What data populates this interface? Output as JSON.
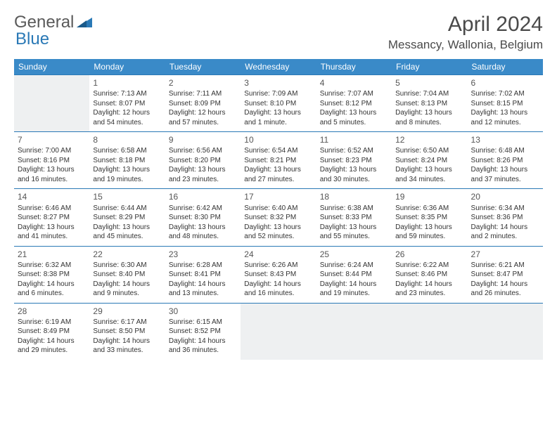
{
  "logo": {
    "general": "General",
    "blue": "Blue"
  },
  "header": {
    "month_title": "April 2024",
    "location": "Messancy, Wallonia, Belgium"
  },
  "colors": {
    "header_bg": "#3a8ac8",
    "header_text": "#ffffff",
    "cell_border": "#2a79b6",
    "empty_bg": "#eef0f1",
    "text": "#333333",
    "logo_gray": "#5a5a5a",
    "logo_blue": "#2a79b6"
  },
  "weekdays": [
    "Sunday",
    "Monday",
    "Tuesday",
    "Wednesday",
    "Thursday",
    "Friday",
    "Saturday"
  ],
  "weeks": [
    [
      {
        "empty": true
      },
      {
        "day": "1",
        "sunrise": "Sunrise: 7:13 AM",
        "sunset": "Sunset: 8:07 PM",
        "daylight1": "Daylight: 12 hours",
        "daylight2": "and 54 minutes."
      },
      {
        "day": "2",
        "sunrise": "Sunrise: 7:11 AM",
        "sunset": "Sunset: 8:09 PM",
        "daylight1": "Daylight: 12 hours",
        "daylight2": "and 57 minutes."
      },
      {
        "day": "3",
        "sunrise": "Sunrise: 7:09 AM",
        "sunset": "Sunset: 8:10 PM",
        "daylight1": "Daylight: 13 hours",
        "daylight2": "and 1 minute."
      },
      {
        "day": "4",
        "sunrise": "Sunrise: 7:07 AM",
        "sunset": "Sunset: 8:12 PM",
        "daylight1": "Daylight: 13 hours",
        "daylight2": "and 5 minutes."
      },
      {
        "day": "5",
        "sunrise": "Sunrise: 7:04 AM",
        "sunset": "Sunset: 8:13 PM",
        "daylight1": "Daylight: 13 hours",
        "daylight2": "and 8 minutes."
      },
      {
        "day": "6",
        "sunrise": "Sunrise: 7:02 AM",
        "sunset": "Sunset: 8:15 PM",
        "daylight1": "Daylight: 13 hours",
        "daylight2": "and 12 minutes."
      }
    ],
    [
      {
        "day": "7",
        "sunrise": "Sunrise: 7:00 AM",
        "sunset": "Sunset: 8:16 PM",
        "daylight1": "Daylight: 13 hours",
        "daylight2": "and 16 minutes."
      },
      {
        "day": "8",
        "sunrise": "Sunrise: 6:58 AM",
        "sunset": "Sunset: 8:18 PM",
        "daylight1": "Daylight: 13 hours",
        "daylight2": "and 19 minutes."
      },
      {
        "day": "9",
        "sunrise": "Sunrise: 6:56 AM",
        "sunset": "Sunset: 8:20 PM",
        "daylight1": "Daylight: 13 hours",
        "daylight2": "and 23 minutes."
      },
      {
        "day": "10",
        "sunrise": "Sunrise: 6:54 AM",
        "sunset": "Sunset: 8:21 PM",
        "daylight1": "Daylight: 13 hours",
        "daylight2": "and 27 minutes."
      },
      {
        "day": "11",
        "sunrise": "Sunrise: 6:52 AM",
        "sunset": "Sunset: 8:23 PM",
        "daylight1": "Daylight: 13 hours",
        "daylight2": "and 30 minutes."
      },
      {
        "day": "12",
        "sunrise": "Sunrise: 6:50 AM",
        "sunset": "Sunset: 8:24 PM",
        "daylight1": "Daylight: 13 hours",
        "daylight2": "and 34 minutes."
      },
      {
        "day": "13",
        "sunrise": "Sunrise: 6:48 AM",
        "sunset": "Sunset: 8:26 PM",
        "daylight1": "Daylight: 13 hours",
        "daylight2": "and 37 minutes."
      }
    ],
    [
      {
        "day": "14",
        "sunrise": "Sunrise: 6:46 AM",
        "sunset": "Sunset: 8:27 PM",
        "daylight1": "Daylight: 13 hours",
        "daylight2": "and 41 minutes."
      },
      {
        "day": "15",
        "sunrise": "Sunrise: 6:44 AM",
        "sunset": "Sunset: 8:29 PM",
        "daylight1": "Daylight: 13 hours",
        "daylight2": "and 45 minutes."
      },
      {
        "day": "16",
        "sunrise": "Sunrise: 6:42 AM",
        "sunset": "Sunset: 8:30 PM",
        "daylight1": "Daylight: 13 hours",
        "daylight2": "and 48 minutes."
      },
      {
        "day": "17",
        "sunrise": "Sunrise: 6:40 AM",
        "sunset": "Sunset: 8:32 PM",
        "daylight1": "Daylight: 13 hours",
        "daylight2": "and 52 minutes."
      },
      {
        "day": "18",
        "sunrise": "Sunrise: 6:38 AM",
        "sunset": "Sunset: 8:33 PM",
        "daylight1": "Daylight: 13 hours",
        "daylight2": "and 55 minutes."
      },
      {
        "day": "19",
        "sunrise": "Sunrise: 6:36 AM",
        "sunset": "Sunset: 8:35 PM",
        "daylight1": "Daylight: 13 hours",
        "daylight2": "and 59 minutes."
      },
      {
        "day": "20",
        "sunrise": "Sunrise: 6:34 AM",
        "sunset": "Sunset: 8:36 PM",
        "daylight1": "Daylight: 14 hours",
        "daylight2": "and 2 minutes."
      }
    ],
    [
      {
        "day": "21",
        "sunrise": "Sunrise: 6:32 AM",
        "sunset": "Sunset: 8:38 PM",
        "daylight1": "Daylight: 14 hours",
        "daylight2": "and 6 minutes."
      },
      {
        "day": "22",
        "sunrise": "Sunrise: 6:30 AM",
        "sunset": "Sunset: 8:40 PM",
        "daylight1": "Daylight: 14 hours",
        "daylight2": "and 9 minutes."
      },
      {
        "day": "23",
        "sunrise": "Sunrise: 6:28 AM",
        "sunset": "Sunset: 8:41 PM",
        "daylight1": "Daylight: 14 hours",
        "daylight2": "and 13 minutes."
      },
      {
        "day": "24",
        "sunrise": "Sunrise: 6:26 AM",
        "sunset": "Sunset: 8:43 PM",
        "daylight1": "Daylight: 14 hours",
        "daylight2": "and 16 minutes."
      },
      {
        "day": "25",
        "sunrise": "Sunrise: 6:24 AM",
        "sunset": "Sunset: 8:44 PM",
        "daylight1": "Daylight: 14 hours",
        "daylight2": "and 19 minutes."
      },
      {
        "day": "26",
        "sunrise": "Sunrise: 6:22 AM",
        "sunset": "Sunset: 8:46 PM",
        "daylight1": "Daylight: 14 hours",
        "daylight2": "and 23 minutes."
      },
      {
        "day": "27",
        "sunrise": "Sunrise: 6:21 AM",
        "sunset": "Sunset: 8:47 PM",
        "daylight1": "Daylight: 14 hours",
        "daylight2": "and 26 minutes."
      }
    ],
    [
      {
        "day": "28",
        "sunrise": "Sunrise: 6:19 AM",
        "sunset": "Sunset: 8:49 PM",
        "daylight1": "Daylight: 14 hours",
        "daylight2": "and 29 minutes."
      },
      {
        "day": "29",
        "sunrise": "Sunrise: 6:17 AM",
        "sunset": "Sunset: 8:50 PM",
        "daylight1": "Daylight: 14 hours",
        "daylight2": "and 33 minutes."
      },
      {
        "day": "30",
        "sunrise": "Sunrise: 6:15 AM",
        "sunset": "Sunset: 8:52 PM",
        "daylight1": "Daylight: 14 hours",
        "daylight2": "and 36 minutes."
      },
      {
        "empty": true
      },
      {
        "empty": true
      },
      {
        "empty": true
      },
      {
        "empty": true
      }
    ]
  ]
}
